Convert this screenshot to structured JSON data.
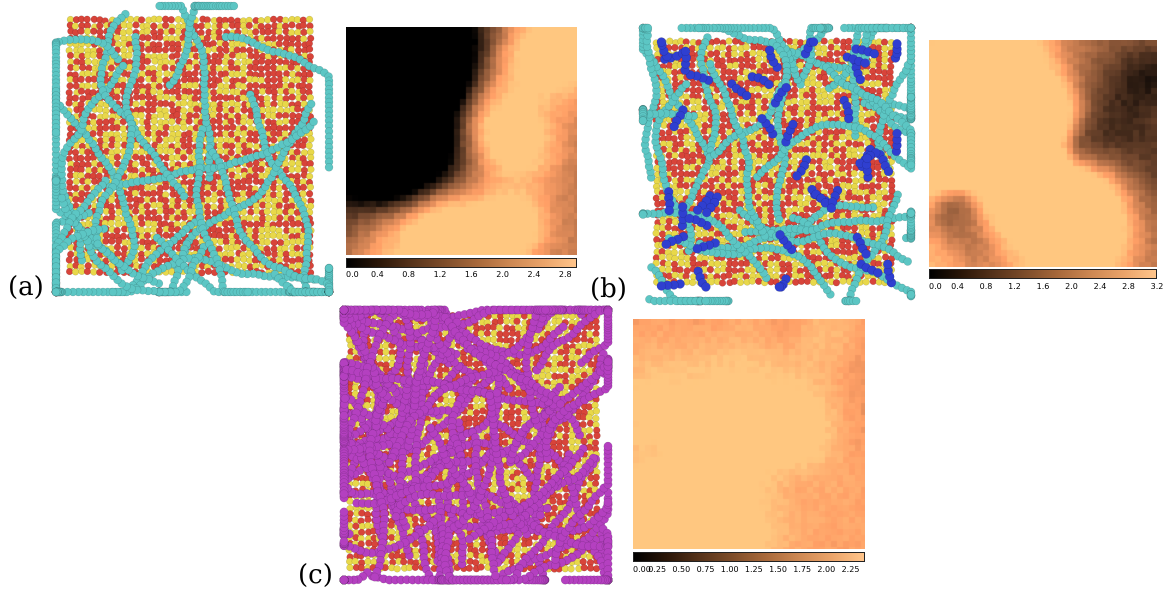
{
  "panels": [
    {
      "id": "a",
      "label": "(a)",
      "particle_colors": {
        "substrate_primary": "#e8d84a",
        "substrate_secondary": "#d8443a",
        "chain": "#5cc6c4"
      },
      "colorbar": {
        "ticks": [
          "0.0",
          "0.4",
          "0.8",
          "1.2",
          "1.6",
          "2.0",
          "2.4",
          "2.8"
        ],
        "min": 0.0,
        "max": 2.95
      }
    },
    {
      "id": "b",
      "label": "(b)",
      "particle_colors": {
        "substrate_primary": "#e8d84a",
        "substrate_secondary": "#d8443a",
        "chain": "#5cc6c4",
        "chain_secondary": "#2f3fd0"
      },
      "colorbar": {
        "ticks": [
          "0.0",
          "0.4",
          "0.8",
          "1.2",
          "1.6",
          "2.0",
          "2.4",
          "2.8",
          "3.2"
        ],
        "min": 0.0,
        "max": 3.2
      }
    },
    {
      "id": "c",
      "label": "(c)",
      "particle_colors": {
        "substrate_primary": "#e8d84a",
        "substrate_secondary": "#d8443a",
        "chain": "#b440c0"
      },
      "colorbar": {
        "ticks": [
          "0.00",
          "0.25",
          "0.50",
          "0.75",
          "1.00",
          "1.25",
          "1.50",
          "1.75",
          "2.00",
          "2.25"
        ],
        "min": 0.0,
        "max": 2.4
      }
    }
  ]
}
